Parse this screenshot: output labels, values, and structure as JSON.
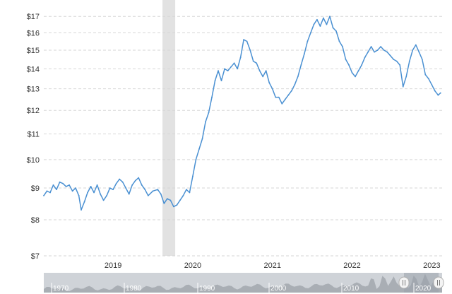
{
  "colors": {
    "line": "#4a90d2",
    "grid": "#d6d6d6",
    "recession_band": "#e2e2e2",
    "navigator_bg": "#cfd3d8",
    "navigator_area": "#a9aeb4",
    "navigator_selection": "#9ba3ab",
    "handle_bg": "#f4f4f4",
    "handle_border": "#b0b0b0"
  },
  "chart_data": {
    "type": "line",
    "title": "",
    "xlabel": "",
    "ylabel": "",
    "y_scale": "log",
    "ylim": [
      7,
      17.6
    ],
    "xlim": [
      2018.33,
      2023.33
    ],
    "grid": "horizontal dashed",
    "legend": "none",
    "y_ticks": [
      {
        "value": 7,
        "label": "$7"
      },
      {
        "value": 8,
        "label": "$8"
      },
      {
        "value": 9,
        "label": "$9"
      },
      {
        "value": 10,
        "label": "$10"
      },
      {
        "value": 11,
        "label": "$11"
      },
      {
        "value": 12,
        "label": "$12"
      },
      {
        "value": 13,
        "label": "$13"
      },
      {
        "value": 14,
        "label": "$14"
      },
      {
        "value": 15,
        "label": "$15"
      },
      {
        "value": 16,
        "label": "$16"
      },
      {
        "value": 17,
        "label": "$17"
      }
    ],
    "x_ticks": [
      {
        "value": 2019,
        "label": "2019"
      },
      {
        "value": 2020,
        "label": "2020"
      },
      {
        "value": 2021,
        "label": "2021"
      },
      {
        "value": 2022,
        "label": "2022"
      },
      {
        "value": 2023,
        "label": "2023"
      }
    ],
    "shaded_ranges": [
      {
        "start": 2019.82,
        "end": 2019.98
      }
    ],
    "series": [
      {
        "points": [
          [
            2018.33,
            8.75
          ],
          [
            2018.37,
            8.9
          ],
          [
            2018.41,
            8.85
          ],
          [
            2018.45,
            9.1
          ],
          [
            2018.49,
            8.95
          ],
          [
            2018.53,
            9.2
          ],
          [
            2018.57,
            9.15
          ],
          [
            2018.61,
            9.05
          ],
          [
            2018.65,
            9.1
          ],
          [
            2018.69,
            8.9
          ],
          [
            2018.73,
            9.0
          ],
          [
            2018.77,
            8.75
          ],
          [
            2018.8,
            8.3
          ],
          [
            2018.84,
            8.55
          ],
          [
            2018.88,
            8.85
          ],
          [
            2018.92,
            9.05
          ],
          [
            2018.96,
            8.85
          ],
          [
            2019.0,
            9.1
          ],
          [
            2019.04,
            8.8
          ],
          [
            2019.08,
            8.6
          ],
          [
            2019.12,
            8.75
          ],
          [
            2019.16,
            9.0
          ],
          [
            2019.2,
            8.95
          ],
          [
            2019.24,
            9.15
          ],
          [
            2019.28,
            9.3
          ],
          [
            2019.32,
            9.2
          ],
          [
            2019.36,
            9.0
          ],
          [
            2019.4,
            8.8
          ],
          [
            2019.44,
            9.1
          ],
          [
            2019.48,
            9.25
          ],
          [
            2019.52,
            9.35
          ],
          [
            2019.56,
            9.1
          ],
          [
            2019.6,
            8.95
          ],
          [
            2019.64,
            8.75
          ],
          [
            2019.7,
            8.9
          ],
          [
            2019.76,
            8.95
          ],
          [
            2019.8,
            8.8
          ],
          [
            2019.84,
            8.5
          ],
          [
            2019.88,
            8.65
          ],
          [
            2019.92,
            8.6
          ],
          [
            2019.96,
            8.4
          ],
          [
            2020.0,
            8.45
          ],
          [
            2020.04,
            8.6
          ],
          [
            2020.08,
            8.75
          ],
          [
            2020.12,
            8.95
          ],
          [
            2020.16,
            8.85
          ],
          [
            2020.2,
            9.4
          ],
          [
            2020.24,
            10.0
          ],
          [
            2020.28,
            10.4
          ],
          [
            2020.32,
            10.8
          ],
          [
            2020.36,
            11.5
          ],
          [
            2020.4,
            11.9
          ],
          [
            2020.44,
            12.6
          ],
          [
            2020.48,
            13.4
          ],
          [
            2020.52,
            13.9
          ],
          [
            2020.56,
            13.4
          ],
          [
            2020.6,
            14.0
          ],
          [
            2020.64,
            13.9
          ],
          [
            2020.68,
            14.1
          ],
          [
            2020.72,
            14.3
          ],
          [
            2020.76,
            14.0
          ],
          [
            2020.8,
            14.6
          ],
          [
            2020.84,
            15.6
          ],
          [
            2020.88,
            15.5
          ],
          [
            2020.92,
            15.0
          ],
          [
            2020.96,
            14.4
          ],
          [
            2021.0,
            14.3
          ],
          [
            2021.04,
            13.9
          ],
          [
            2021.08,
            13.6
          ],
          [
            2021.12,
            13.9
          ],
          [
            2021.16,
            13.3
          ],
          [
            2021.2,
            13.0
          ],
          [
            2021.24,
            12.6
          ],
          [
            2021.28,
            12.6
          ],
          [
            2021.32,
            12.3
          ],
          [
            2021.36,
            12.5
          ],
          [
            2021.4,
            12.7
          ],
          [
            2021.44,
            12.9
          ],
          [
            2021.48,
            13.2
          ],
          [
            2021.52,
            13.6
          ],
          [
            2021.56,
            14.2
          ],
          [
            2021.6,
            14.8
          ],
          [
            2021.64,
            15.5
          ],
          [
            2021.68,
            16.0
          ],
          [
            2021.72,
            16.5
          ],
          [
            2021.76,
            16.8
          ],
          [
            2021.8,
            16.4
          ],
          [
            2021.84,
            16.9
          ],
          [
            2021.88,
            16.5
          ],
          [
            2021.92,
            17.0
          ],
          [
            2021.96,
            16.3
          ],
          [
            2022.0,
            16.1
          ],
          [
            2022.04,
            15.5
          ],
          [
            2022.08,
            15.2
          ],
          [
            2022.12,
            14.5
          ],
          [
            2022.16,
            14.2
          ],
          [
            2022.2,
            13.8
          ],
          [
            2022.24,
            13.6
          ],
          [
            2022.28,
            13.9
          ],
          [
            2022.32,
            14.2
          ],
          [
            2022.36,
            14.6
          ],
          [
            2022.4,
            14.9
          ],
          [
            2022.44,
            15.2
          ],
          [
            2022.48,
            14.9
          ],
          [
            2022.52,
            15.0
          ],
          [
            2022.56,
            15.2
          ],
          [
            2022.6,
            15.0
          ],
          [
            2022.64,
            14.9
          ],
          [
            2022.68,
            14.7
          ],
          [
            2022.72,
            14.5
          ],
          [
            2022.76,
            14.4
          ],
          [
            2022.8,
            14.2
          ],
          [
            2022.84,
            13.1
          ],
          [
            2022.88,
            13.6
          ],
          [
            2022.92,
            14.4
          ],
          [
            2022.96,
            15.0
          ],
          [
            2023.0,
            15.3
          ],
          [
            2023.04,
            14.9
          ],
          [
            2023.08,
            14.5
          ],
          [
            2023.12,
            13.7
          ],
          [
            2023.16,
            13.5
          ],
          [
            2023.2,
            13.2
          ],
          [
            2023.24,
            12.9
          ],
          [
            2023.28,
            12.7
          ],
          [
            2023.31,
            12.8
          ]
        ]
      }
    ]
  },
  "navigator": {
    "labels": [
      "1970",
      "1980",
      "1990",
      "2000",
      "2010",
      "2020"
    ],
    "handle_icon": "grip-lines-icon"
  }
}
